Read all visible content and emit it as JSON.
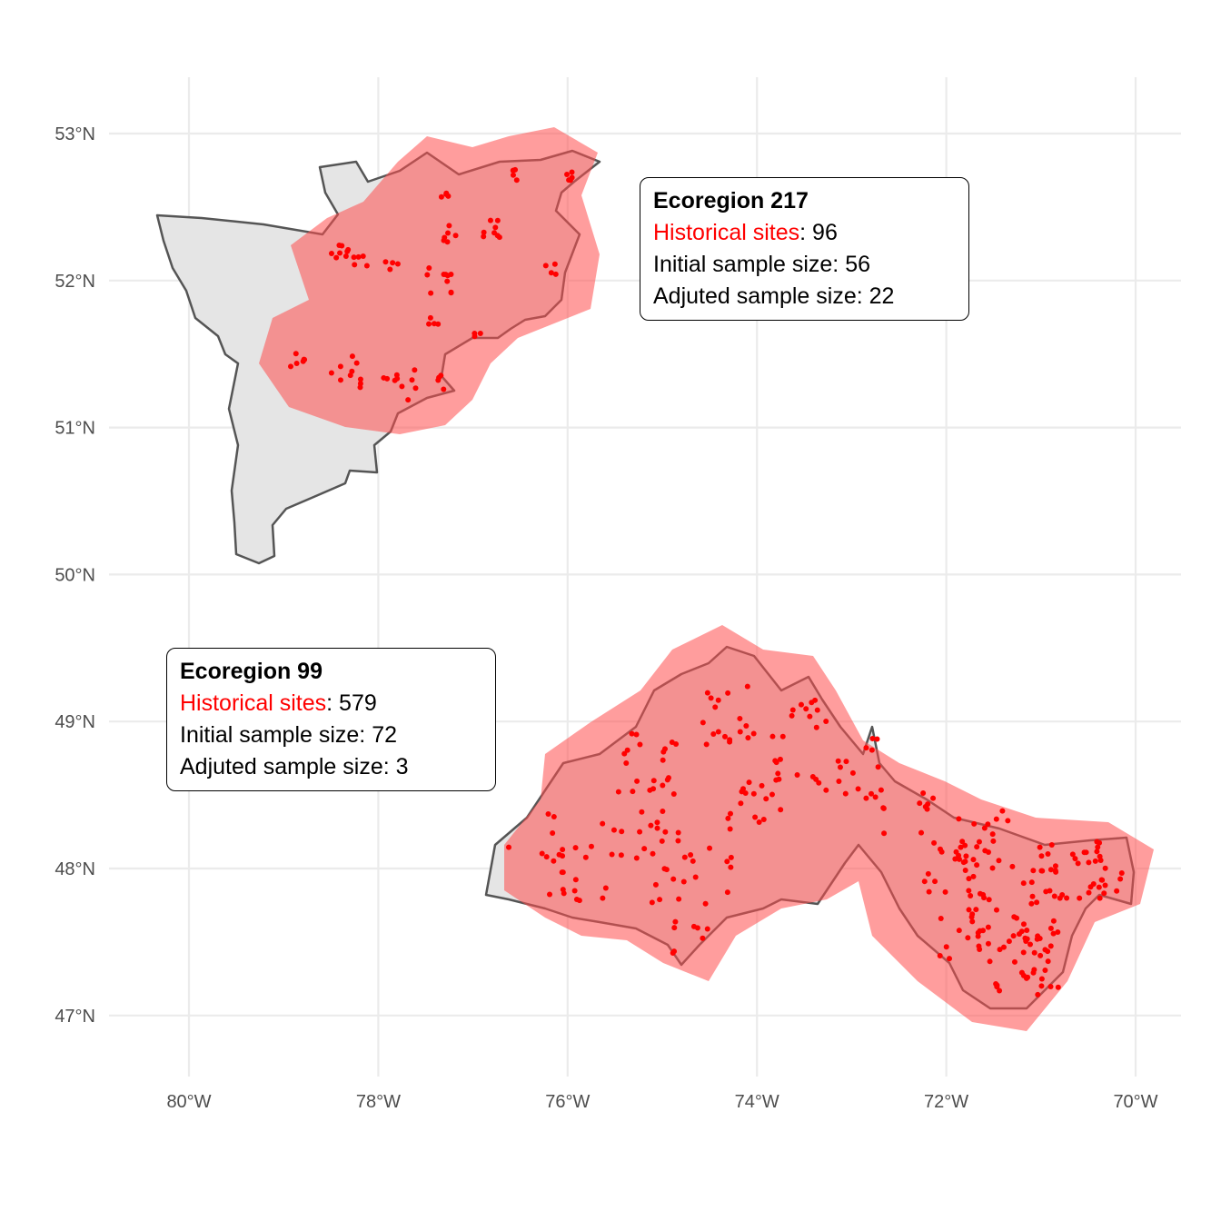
{
  "chart_data": {
    "type": "map",
    "x_ticks": [
      "80°W",
      "78°W",
      "76°W",
      "74°W",
      "72°W",
      "70°W"
    ],
    "x_values": [
      -80,
      -78,
      -76,
      -74,
      -72,
      -70
    ],
    "y_ticks": [
      "53°N",
      "52°N",
      "51°N",
      "50°N",
      "49°N",
      "48°N",
      "47°N"
    ],
    "y_values": [
      53,
      52,
      51,
      50,
      49,
      48,
      47
    ],
    "xlim": [
      -80.8,
      -69.5
    ],
    "ylim": [
      46.6,
      53.4
    ],
    "grid": true,
    "colors": {
      "region_fill": "#e5e5e5",
      "region_outline": "#555555",
      "buffer_fill": "#ff4d4d",
      "site_points": "#ff0000",
      "accent_text": "#ff0000"
    },
    "annotations": [
      {
        "title": "Ecoregion 217",
        "sites_label": "Historical sites",
        "sites_value": ": 96",
        "initial_line": "Initial sample size: 56",
        "adjusted_line": "Adjuted sample size: 22"
      },
      {
        "title": "Ecoregion 99",
        "sites_label": "Historical sites",
        "sites_value": ": 579",
        "initial_line": "Initial sample size: 72",
        "adjusted_line": "Adjuted sample size: 3"
      }
    ]
  }
}
